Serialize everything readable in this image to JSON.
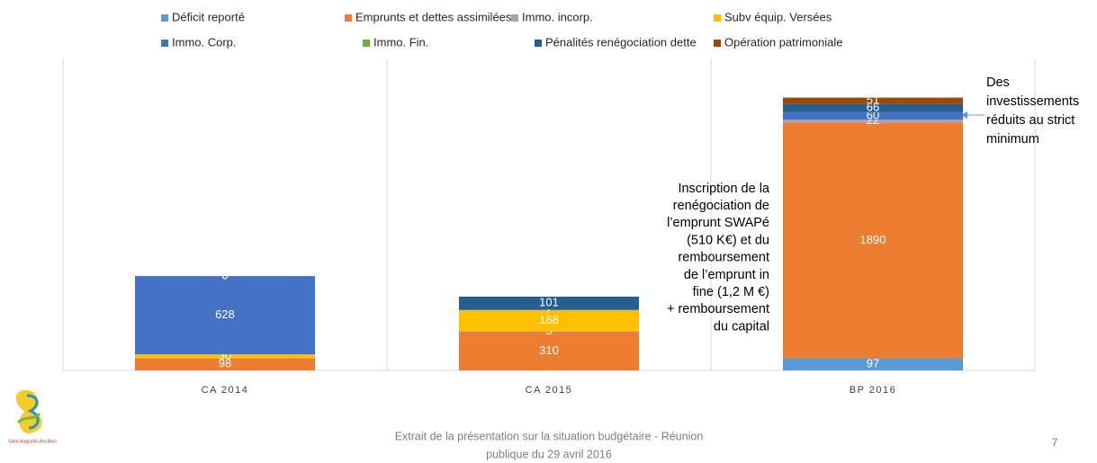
{
  "chart_data": {
    "type": "stacked_bar",
    "categories": [
      "CA 2014",
      "CA 2015",
      "BP 2016"
    ],
    "series": [
      {
        "name": "Déficit reporté",
        "color": "#5b9bd5",
        "values": [
          0,
          0,
          97
        ]
      },
      {
        "name": "Emprunts et dettes assimilées",
        "color": "#ed7d31",
        "values": [
          98,
          310,
          1890
        ]
      },
      {
        "name": "Immo. incorp.",
        "color": "#a5a5a5",
        "values": [
          0,
          5,
          22
        ]
      },
      {
        "name": "Subv équip. Versées",
        "color": "#ffc000",
        "values": [
          30,
          168,
          0
        ]
      },
      {
        "name": "Immo. Corp.",
        "color": "#4472c4",
        "values": [
          628,
          7,
          60
        ]
      },
      {
        "name": "Immo. Fin.",
        "color": "#70ad47",
        "values": [
          0,
          0,
          0
        ]
      },
      {
        "name": "Pénalités renégociation dette",
        "color": "#255e91",
        "values": [
          0,
          101,
          66
        ]
      },
      {
        "name": "Opération patrimoniale",
        "color": "#9e480e",
        "values": [
          0,
          0,
          51
        ]
      }
    ],
    "ylim": [
      0,
      2500
    ],
    "annotations": [
      [
        "Inscription de la",
        "renégociation de",
        "l’emprunt SWAPé",
        "(510 K€) et du",
        "remboursement",
        "de l’emprunt in",
        "fine (1,2 M €)",
        "+ remboursement",
        "du capital"
      ],
      [
        "Des",
        "investissements",
        "réduits au strict",
        "minimum"
      ]
    ]
  },
  "footer": {
    "text": [
      "Extrait de la présentation sur la situation budgétaire - Réunion",
      "publique du 29 avril 2016"
    ],
    "page": "7",
    "logo": "Saint-Augustin-des-Bois"
  }
}
